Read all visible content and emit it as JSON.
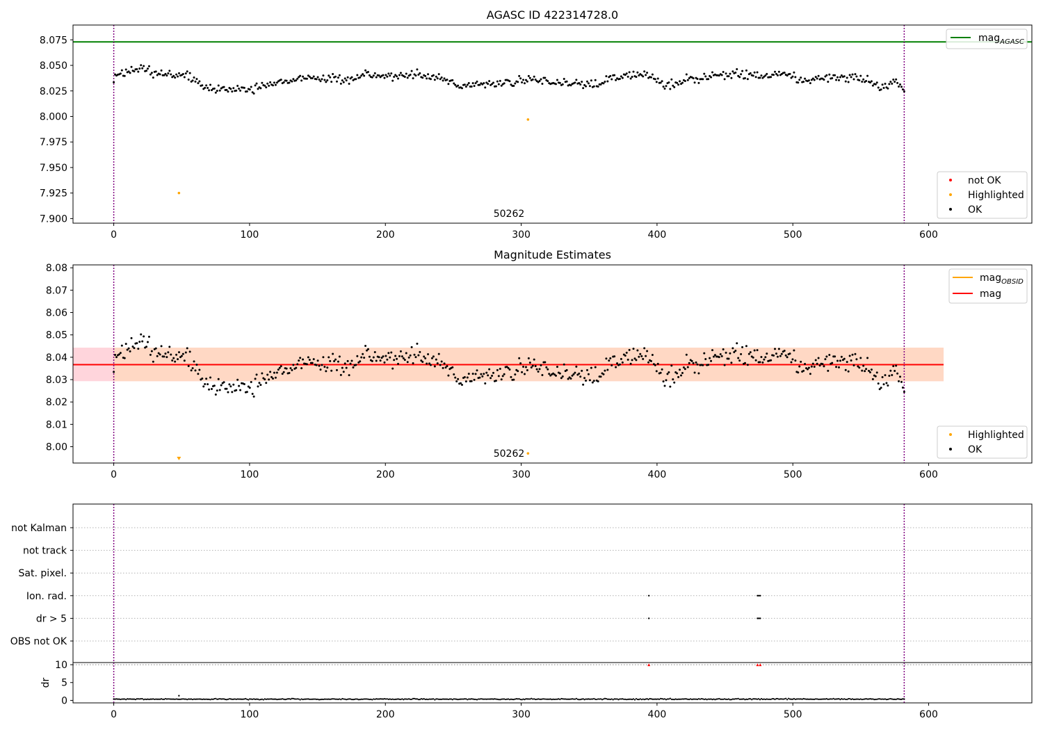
{
  "chart_data": [
    {
      "type": "scatter",
      "title": "AGASC ID 422314728.0",
      "xlabel": "",
      "ylabel": "",
      "xlim": [
        -30,
        676
      ],
      "ylim": [
        7.8955,
        8.0895
      ],
      "xticks": [
        0,
        100,
        200,
        300,
        400,
        500,
        600
      ],
      "yticks": [
        7.9,
        7.925,
        7.95,
        7.975,
        8.0,
        8.025,
        8.05,
        8.075
      ],
      "ytick_labels": [
        "7.900",
        "7.925",
        "7.950",
        "7.975",
        "8.000",
        "8.025",
        "8.050",
        "8.075"
      ],
      "vlines": [
        0,
        582
      ],
      "hline": {
        "name_base": "mag",
        "name_sub": "AGASC",
        "value": 8.073,
        "color": "#008000"
      },
      "obsid_label": {
        "text": "50262",
        "x": 291
      },
      "legend_points": [
        {
          "name": "not OK",
          "color": "#ff0000"
        },
        {
          "name": "Highlighted",
          "color": "#ffa500"
        },
        {
          "name": "OK",
          "color": "#000000"
        }
      ],
      "ok_series": {
        "name": "OK",
        "x_start": 0,
        "x_end": 582,
        "count": 582,
        "trend": [
          [
            0,
            8.038
          ],
          [
            10,
            8.044
          ],
          [
            20,
            8.047
          ],
          [
            30,
            8.042
          ],
          [
            40,
            8.04
          ],
          [
            50,
            8.041
          ],
          [
            58,
            8.038
          ],
          [
            65,
            8.029
          ],
          [
            80,
            8.026
          ],
          [
            100,
            8.026
          ],
          [
            120,
            8.033
          ],
          [
            140,
            8.038
          ],
          [
            160,
            8.037
          ],
          [
            175,
            8.035
          ],
          [
            185,
            8.041
          ],
          [
            200,
            8.04
          ],
          [
            215,
            8.039
          ],
          [
            225,
            8.041
          ],
          [
            240,
            8.037
          ],
          [
            255,
            8.031
          ],
          [
            270,
            8.03
          ],
          [
            290,
            8.034
          ],
          [
            310,
            8.036
          ],
          [
            330,
            8.032
          ],
          [
            350,
            8.031
          ],
          [
            365,
            8.036
          ],
          [
            380,
            8.04
          ],
          [
            395,
            8.041
          ],
          [
            405,
            8.029
          ],
          [
            420,
            8.035
          ],
          [
            440,
            8.04
          ],
          [
            460,
            8.042
          ],
          [
            480,
            8.04
          ],
          [
            495,
            8.043
          ],
          [
            505,
            8.036
          ],
          [
            520,
            8.037
          ],
          [
            540,
            8.038
          ],
          [
            555,
            8.035
          ],
          [
            565,
            8.027
          ],
          [
            575,
            8.035
          ],
          [
            582,
            8.024
          ]
        ],
        "noise": 0.005
      },
      "highlighted_points": [
        [
          48,
          7.925
        ],
        [
          305,
          7.997
        ]
      ]
    },
    {
      "type": "scatter",
      "title": "Magnitude Estimates",
      "xlabel": "",
      "ylabel": "",
      "xlim": [
        -30,
        676
      ],
      "ylim": [
        7.9927,
        8.0813
      ],
      "xticks": [
        0,
        100,
        200,
        300,
        400,
        500,
        600
      ],
      "yticks": [
        8.0,
        8.01,
        8.02,
        8.03,
        8.04,
        8.05,
        8.06,
        8.07,
        8.08
      ],
      "ytick_labels": [
        "8.00",
        "8.01",
        "8.02",
        "8.03",
        "8.04",
        "8.05",
        "8.06",
        "8.07",
        "8.08"
      ],
      "vlines": [
        0,
        582
      ],
      "band_pink": {
        "x": [
          -30,
          611
        ],
        "y": [
          8.0293,
          8.0443
        ],
        "color": "#ffd5dc"
      },
      "band_orange": {
        "x": [
          0,
          611
        ],
        "y": [
          8.0293,
          8.0443
        ],
        "color": "#ffd8c4"
      },
      "legend_lines": [
        {
          "name_base": "mag",
          "name_sub": "OBSID",
          "color": "#ffa500",
          "value": 8.0367
        },
        {
          "name_base": "mag",
          "name_sub": "",
          "color": "#ff0000",
          "value": 8.0367
        }
      ],
      "obsid_label": {
        "text": "50262",
        "x": 291
      },
      "legend_points": [
        {
          "name": "Highlighted",
          "color": "#ffa500"
        },
        {
          "name": "OK",
          "color": "#000000"
        }
      ],
      "ok_series": {
        "name": "OK",
        "x_start": 0,
        "x_end": 582,
        "count": 582,
        "trend": [
          [
            0,
            8.038
          ],
          [
            10,
            8.044
          ],
          [
            20,
            8.047
          ],
          [
            30,
            8.042
          ],
          [
            40,
            8.04
          ],
          [
            50,
            8.041
          ],
          [
            58,
            8.038
          ],
          [
            65,
            8.029
          ],
          [
            80,
            8.026
          ],
          [
            100,
            8.026
          ],
          [
            120,
            8.033
          ],
          [
            140,
            8.038
          ],
          [
            160,
            8.037
          ],
          [
            175,
            8.035
          ],
          [
            185,
            8.041
          ],
          [
            200,
            8.04
          ],
          [
            215,
            8.039
          ],
          [
            225,
            8.041
          ],
          [
            240,
            8.037
          ],
          [
            255,
            8.031
          ],
          [
            270,
            8.03
          ],
          [
            290,
            8.034
          ],
          [
            310,
            8.036
          ],
          [
            330,
            8.032
          ],
          [
            350,
            8.031
          ],
          [
            365,
            8.036
          ],
          [
            380,
            8.04
          ],
          [
            395,
            8.041
          ],
          [
            405,
            8.029
          ],
          [
            420,
            8.035
          ],
          [
            440,
            8.04
          ],
          [
            460,
            8.042
          ],
          [
            480,
            8.04
          ],
          [
            495,
            8.043
          ],
          [
            505,
            8.036
          ],
          [
            520,
            8.037
          ],
          [
            540,
            8.038
          ],
          [
            555,
            8.035
          ],
          [
            565,
            8.027
          ],
          [
            575,
            8.035
          ],
          [
            582,
            8.024
          ]
        ],
        "noise": 0.005
      },
      "highlighted_points": [
        [
          305,
          7.997
        ]
      ],
      "offscale_marker": {
        "x": 48,
        "direction": "down",
        "color": "#ffa500"
      }
    },
    {
      "type": "scatter",
      "title": "",
      "xlabel": "",
      "ylabel": "",
      "xlim": [
        -30,
        676
      ],
      "ylim": [
        0,
        7
      ],
      "vlines": [
        0,
        582
      ],
      "categories": [
        "not Kalman",
        "not track",
        "Sat. pixel.",
        "Ion. rad.",
        "dr > 5",
        "OBS not OK"
      ],
      "flag_points": [
        {
          "category": "Ion. rad.",
          "x": [
            394,
            474,
            475,
            476
          ]
        },
        {
          "category": "dr > 5",
          "x": [
            394,
            474,
            475,
            476
          ]
        }
      ]
    },
    {
      "type": "scatter",
      "title": "",
      "xlabel": "",
      "ylabel": "dr",
      "xlim": [
        -30,
        676
      ],
      "ylim": [
        -0.7,
        10.6
      ],
      "xticks": [
        0,
        100,
        200,
        300,
        400,
        500,
        600
      ],
      "yticks": [
        0,
        5,
        10
      ],
      "ytick_labels": [
        "0",
        "5",
        "10"
      ],
      "vlines": [
        0,
        582
      ],
      "hline": {
        "value": 10,
        "color": "#808080"
      },
      "ok_series": {
        "name": "dr",
        "x_start": 0,
        "x_end": 582,
        "count": 582,
        "mean": 0.35,
        "noise": 0.2
      },
      "outlier_points": [
        [
          48,
          1.3
        ]
      ],
      "clipped_markers": {
        "x": [
          394,
          474,
          476
        ],
        "value": 10,
        "color": "#ff0000"
      }
    }
  ]
}
